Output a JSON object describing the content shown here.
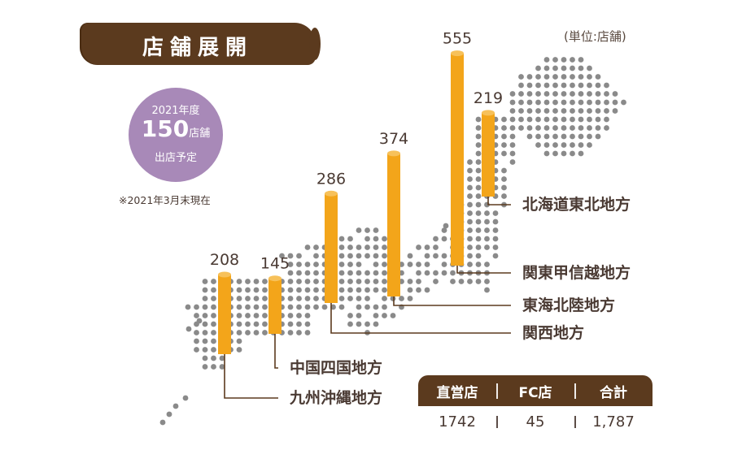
{
  "header": {
    "title": "店舗展開",
    "unit_note": "(単位:店舗)"
  },
  "plan": {
    "year": "2021年度",
    "count": "150",
    "count_unit": "店舗",
    "label": "出店予定",
    "as_of": "※2021年3月末現在"
  },
  "colors": {
    "bar": "#f3a51a",
    "bar_top": "#f7c15a",
    "dot": "#8a8a8a",
    "brown": "#5b3a1e",
    "plan": "#a889b8"
  },
  "chart_data": {
    "type": "bar",
    "title": "店舗展開",
    "ylabel": "(単位:店舗)",
    "categories": [
      "九州沖縄地方",
      "中国四国地方",
      "関西地方",
      "東海北陸地方",
      "関東甲信越地方",
      "北海道東北地方"
    ],
    "values": [
      208,
      145,
      286,
      374,
      555,
      219
    ],
    "value_labels": [
      "208",
      "145",
      "286",
      "374",
      "555",
      "219"
    ]
  },
  "table": {
    "headers": [
      "直営店",
      "FC店",
      "合計"
    ],
    "values": [
      "1742",
      "45",
      "1,787"
    ]
  }
}
